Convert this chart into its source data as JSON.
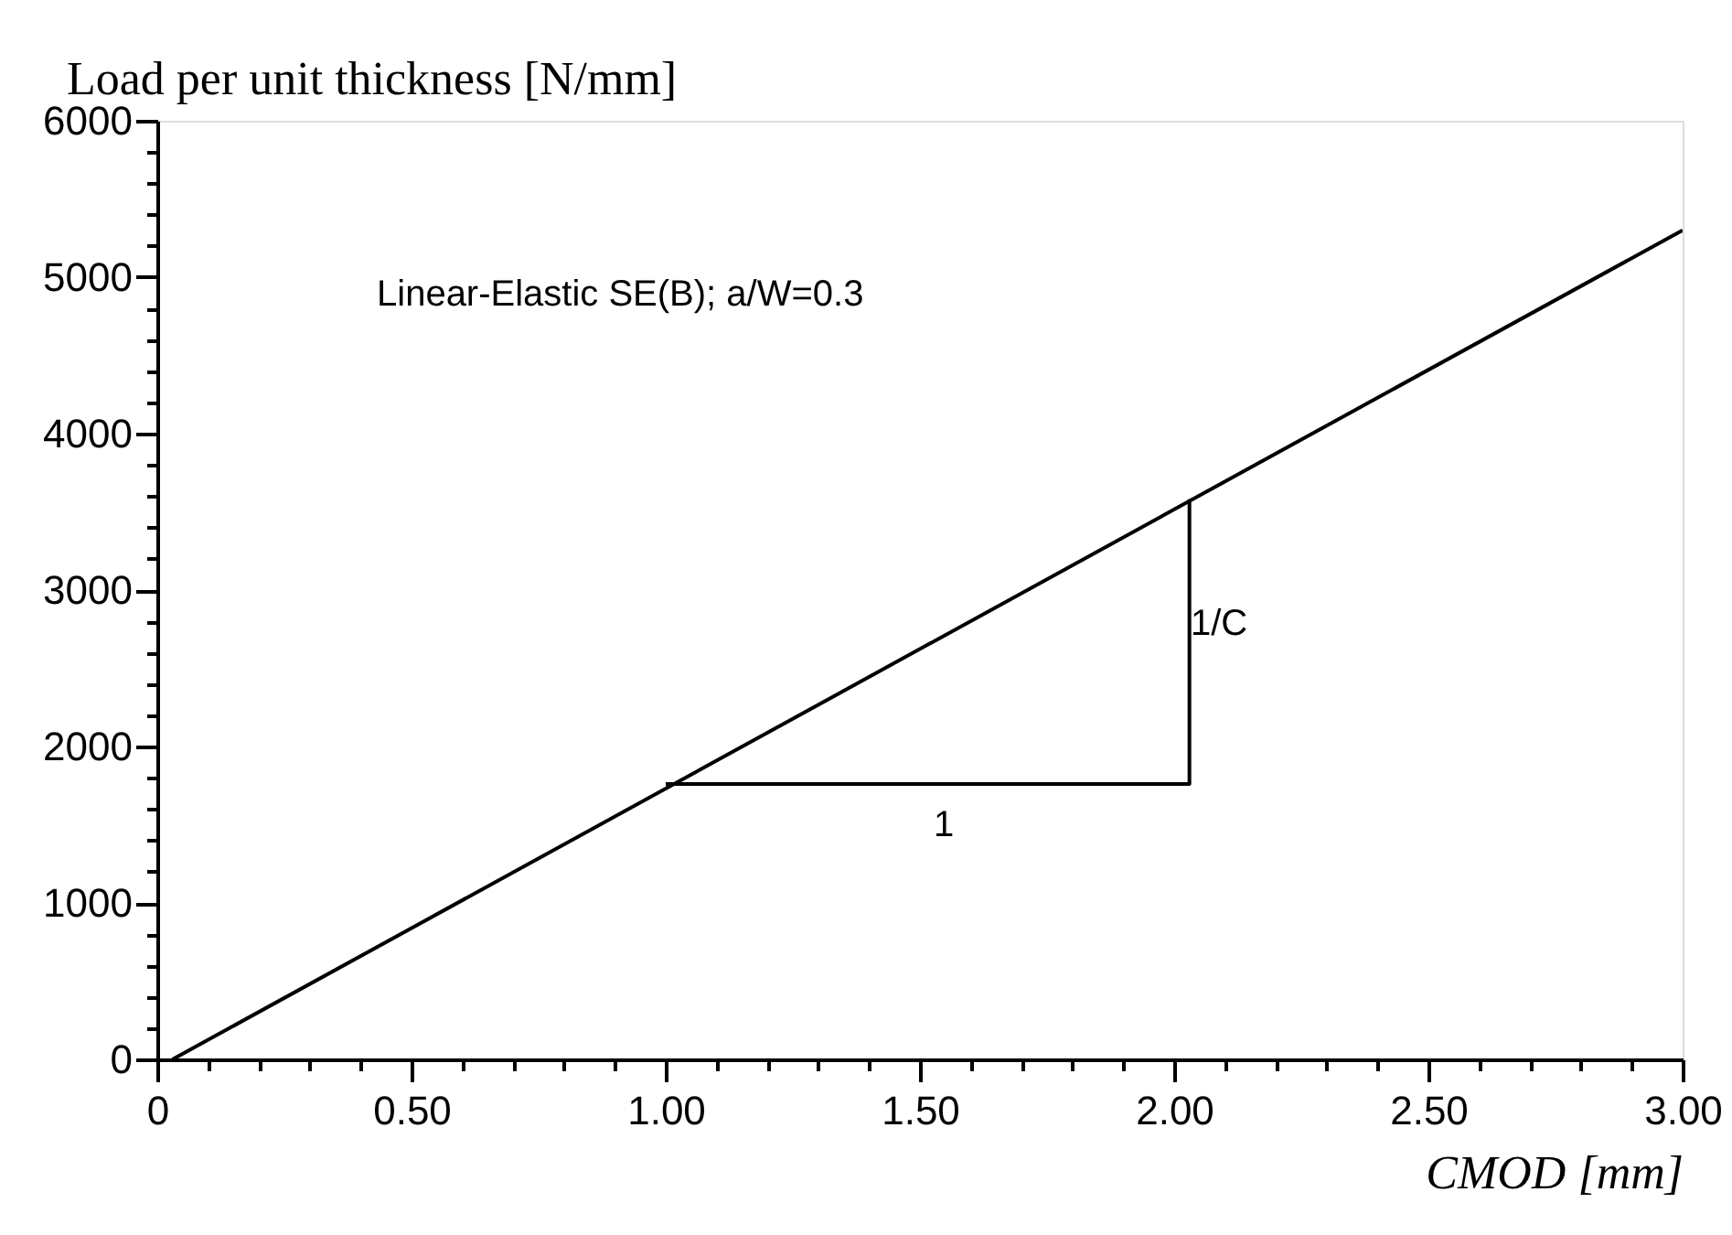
{
  "chart_data": {
    "type": "line",
    "xlabel": "CMOD [mm]",
    "ylabel": "Load per unit thickness [N/mm]",
    "xlim": [
      0,
      3
    ],
    "ylim": [
      0,
      6000
    ],
    "xticks": [
      0,
      {
        "value": 0.1,
        "label": null
      },
      {
        "value": 0.2,
        "label": null
      },
      {
        "value": 0.3,
        "label": null
      },
      {
        "value": 0.4,
        "label": null
      },
      {
        "value": 0.5,
        "label": "0.50"
      },
      {
        "value": 0.6,
        "label": null
      },
      {
        "value": 0.7,
        "label": null
      },
      {
        "value": 0.8,
        "label": null
      },
      {
        "value": 0.9,
        "label": null
      },
      {
        "value": 1.0,
        "label": "1.00"
      },
      {
        "value": 1.1,
        "label": null
      },
      {
        "value": 1.2,
        "label": null
      },
      {
        "value": 1.3,
        "label": null
      },
      {
        "value": 1.4,
        "label": null
      },
      {
        "value": 1.5,
        "label": "1.50"
      },
      {
        "value": 1.6,
        "label": null
      },
      {
        "value": 1.7,
        "label": null
      },
      {
        "value": 1.8,
        "label": null
      },
      {
        "value": 1.9,
        "label": null
      },
      {
        "value": 2.0,
        "label": "2.00"
      },
      {
        "value": 2.1,
        "label": null
      },
      {
        "value": 2.2,
        "label": null
      },
      {
        "value": 2.3,
        "label": null
      },
      {
        "value": 2.4,
        "label": null
      },
      {
        "value": 2.5,
        "label": "2.50"
      },
      {
        "value": 2.6,
        "label": null
      },
      {
        "value": 2.7,
        "label": null
      },
      {
        "value": 2.8,
        "label": null
      },
      {
        "value": 2.9,
        "label": null
      },
      {
        "value": 3.0,
        "label": "3.00"
      }
    ],
    "yticks": [
      0,
      {
        "value": 200,
        "label": null
      },
      {
        "value": 400,
        "label": null
      },
      {
        "value": 600,
        "label": null
      },
      {
        "value": 800,
        "label": null
      },
      1000,
      {
        "value": 1200,
        "label": null
      },
      {
        "value": 1400,
        "label": null
      },
      {
        "value": 1600,
        "label": null
      },
      {
        "value": 1800,
        "label": null
      },
      2000,
      {
        "value": 2200,
        "label": null
      },
      {
        "value": 2400,
        "label": null
      },
      {
        "value": 2600,
        "label": null
      },
      {
        "value": 2800,
        "label": null
      },
      3000,
      {
        "value": 3200,
        "label": null
      },
      {
        "value": 3400,
        "label": null
      },
      {
        "value": 3600,
        "label": null
      },
      {
        "value": 3800,
        "label": null
      },
      4000,
      {
        "value": 4200,
        "label": null
      },
      {
        "value": 4400,
        "label": null
      },
      {
        "value": 4600,
        "label": null
      },
      {
        "value": 4800,
        "label": null
      },
      5000,
      {
        "value": 5200,
        "label": null
      },
      {
        "value": 5400,
        "label": null
      },
      {
        "value": 5600,
        "label": null
      },
      {
        "value": 5800,
        "label": null
      },
      6000
    ],
    "grid": false,
    "legend": false,
    "marker": "none",
    "line_style": "solid",
    "series": [
      {
        "color": "#000000",
        "x": [
          0.03,
          3.0
        ],
        "values": [
          0,
          5300
        ]
      },
      {
        "color": "#000000",
        "x": [
          1.0,
          2.03,
          2.03
        ],
        "values": [
          1760,
          1760,
          3580
        ]
      }
    ],
    "annotations": [
      "Linear-Elastic SE(B); a/W=0.3",
      "1",
      "1/C"
    ]
  }
}
